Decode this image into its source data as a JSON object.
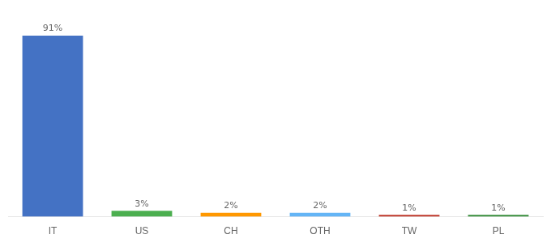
{
  "chart_data": {
    "type": "bar",
    "categories": [
      "IT",
      "US",
      "CH",
      "OTH",
      "TW",
      "PL"
    ],
    "values": [
      91,
      3,
      2,
      2,
      1,
      1
    ],
    "value_labels": [
      "91%",
      "3%",
      "2%",
      "2%",
      "1%",
      "1%"
    ],
    "colors": [
      "#4472c4",
      "#4caf50",
      "#ff9800",
      "#64b5f6",
      "#c0392b",
      "#388e3c"
    ],
    "ylim": [
      0,
      100
    ],
    "data_labels": true,
    "grid": false,
    "tick_labels": "x"
  }
}
